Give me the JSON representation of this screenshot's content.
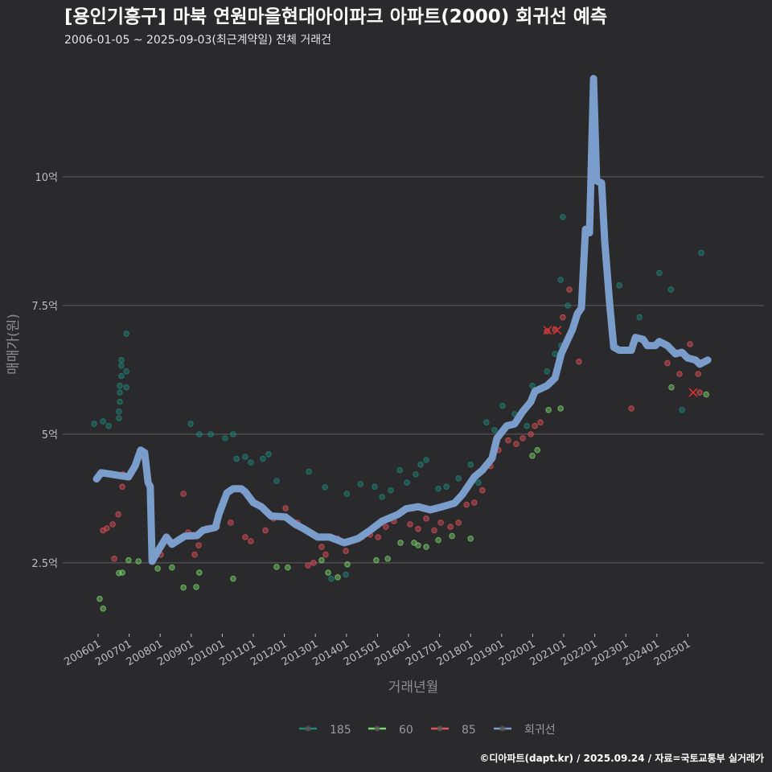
{
  "chart_data": {
    "type": "scatter",
    "title": "[용인기흥구] 마북 연원마을현대아이파크 아파트(2000) 회귀선 예측",
    "subtitle": "2006-01-05 ~ 2025-09-03(최근계약일) 전체 거래건",
    "xlabel": "거래년월",
    "ylabel": "매매가(원)",
    "caption": "©디아파트(dapt.kr) / 2025.09.24 / 자료=국토교통부 실거래가",
    "xlim": [
      2004.86,
      2027.45
    ],
    "ylim": [
      1.17,
      12.42
    ],
    "grid": true,
    "legend_position": "bottom",
    "x_ticks": [
      {
        "value": 2006,
        "label": "200601"
      },
      {
        "value": 2007,
        "label": "200701"
      },
      {
        "value": 2008,
        "label": "200801"
      },
      {
        "value": 2009,
        "label": "200901"
      },
      {
        "value": 2010,
        "label": "201001"
      },
      {
        "value": 2011,
        "label": "201101"
      },
      {
        "value": 2012,
        "label": "201201"
      },
      {
        "value": 2013,
        "label": "201301"
      },
      {
        "value": 2014,
        "label": "201401"
      },
      {
        "value": 2015,
        "label": "201501"
      },
      {
        "value": 2016,
        "label": "201601"
      },
      {
        "value": 2017,
        "label": "201701"
      },
      {
        "value": 2018,
        "label": "201801"
      },
      {
        "value": 2019,
        "label": "201901"
      },
      {
        "value": 2020,
        "label": "202001"
      },
      {
        "value": 2021,
        "label": "202101"
      },
      {
        "value": 2022,
        "label": "202201"
      },
      {
        "value": 2023,
        "label": "202301"
      },
      {
        "value": 2024,
        "label": "202401"
      },
      {
        "value": 2025,
        "label": "202501"
      }
    ],
    "y_ticks": [
      {
        "value": 2.5,
        "label": "2.5억"
      },
      {
        "value": 5,
        "label": "5억"
      },
      {
        "value": 7.5,
        "label": "7.5억"
      },
      {
        "value": 10,
        "label": "10억"
      }
    ],
    "series": [
      {
        "name": "185",
        "color": "#1f8a7a",
        "points": [
          [
            2005.87,
            5.2
          ],
          [
            2006.16,
            5.25
          ],
          [
            2006.34,
            5.16
          ],
          [
            2006.67,
            5.31
          ],
          [
            2006.67,
            5.44
          ],
          [
            2006.7,
            5.63
          ],
          [
            2006.7,
            5.81
          ],
          [
            2006.7,
            5.94
          ],
          [
            2006.75,
            6.13
          ],
          [
            2006.75,
            6.33
          ],
          [
            2006.75,
            6.44
          ],
          [
            2006.91,
            6.22
          ],
          [
            2006.91,
            6.95
          ],
          [
            2006.91,
            5.91
          ],
          [
            2008.98,
            5.2
          ],
          [
            2009.26,
            5.0
          ],
          [
            2009.63,
            5.0
          ],
          [
            2010.09,
            4.92
          ],
          [
            2010.35,
            5.0
          ],
          [
            2010.46,
            4.52
          ],
          [
            2010.74,
            4.56
          ],
          [
            2010.92,
            4.45
          ],
          [
            2011.31,
            4.52
          ],
          [
            2011.49,
            4.61
          ],
          [
            2011.75,
            4.09
          ],
          [
            2012.79,
            4.27
          ],
          [
            2013.31,
            3.97
          ],
          [
            2014.01,
            3.84
          ],
          [
            2014.45,
            4.03
          ],
          [
            2014.91,
            3.98
          ],
          [
            2015.15,
            3.78
          ],
          [
            2015.43,
            3.91
          ],
          [
            2015.72,
            4.3
          ],
          [
            2015.95,
            4.06
          ],
          [
            2016.23,
            4.22
          ],
          [
            2016.39,
            4.41
          ],
          [
            2016.57,
            4.5
          ],
          [
            2016.96,
            3.94
          ],
          [
            2017.22,
            3.98
          ],
          [
            2017.61,
            4.14
          ],
          [
            2018.0,
            4.41
          ],
          [
            2018.25,
            4.06
          ],
          [
            2018.51,
            5.23
          ],
          [
            2018.77,
            5.08
          ],
          [
            2019.03,
            5.55
          ],
          [
            2019.42,
            5.39
          ],
          [
            2019.81,
            5.16
          ],
          [
            2019.99,
            5.94
          ],
          [
            2020.46,
            6.22
          ],
          [
            2020.72,
            6.56
          ],
          [
            2020.92,
            6.72
          ],
          [
            2020.97,
            9.22
          ],
          [
            2020.9,
            8.0
          ],
          [
            2021.13,
            7.5
          ],
          [
            2022.79,
            7.89
          ],
          [
            2023.44,
            7.27
          ],
          [
            2024.08,
            8.13
          ],
          [
            2024.45,
            7.81
          ],
          [
            2024.81,
            5.47
          ],
          [
            2025.43,
            8.52
          ],
          [
            2013.51,
            2.19
          ],
          [
            2013.98,
            2.27
          ]
        ]
      },
      {
        "name": "60",
        "color": "#7fd86e",
        "points": [
          [
            2006.05,
            1.8
          ],
          [
            2006.16,
            1.61
          ],
          [
            2006.67,
            2.3
          ],
          [
            2006.78,
            2.31
          ],
          [
            2006.98,
            2.55
          ],
          [
            2007.3,
            2.53
          ],
          [
            2007.92,
            2.39
          ],
          [
            2008.38,
            2.41
          ],
          [
            2008.75,
            2.02
          ],
          [
            2009.16,
            2.03
          ],
          [
            2009.26,
            2.31
          ],
          [
            2010.35,
            2.19
          ],
          [
            2011.75,
            2.42
          ],
          [
            2012.11,
            2.41
          ],
          [
            2013.2,
            2.55
          ],
          [
            2013.41,
            2.31
          ],
          [
            2013.72,
            2.22
          ],
          [
            2014.03,
            2.47
          ],
          [
            2014.96,
            2.55
          ],
          [
            2015.33,
            2.58
          ],
          [
            2015.74,
            2.89
          ],
          [
            2016.18,
            2.89
          ],
          [
            2016.31,
            2.84
          ],
          [
            2016.57,
            2.81
          ],
          [
            2016.96,
            2.94
          ],
          [
            2017.4,
            3.02
          ],
          [
            2018.0,
            2.97
          ],
          [
            2019.99,
            4.58
          ],
          [
            2020.15,
            4.69
          ],
          [
            2020.51,
            5.47
          ],
          [
            2020.9,
            5.5
          ],
          [
            2024.47,
            5.91
          ],
          [
            2025.59,
            5.77
          ]
        ]
      },
      {
        "name": "85",
        "color": "#e2525c",
        "points": [
          [
            2006.16,
            3.13
          ],
          [
            2006.28,
            3.17
          ],
          [
            2006.47,
            3.25
          ],
          [
            2006.65,
            3.44
          ],
          [
            2006.78,
            3.98
          ],
          [
            2006.8,
            4.22
          ],
          [
            2006.52,
            2.58
          ],
          [
            2008.02,
            2.66
          ],
          [
            2008.75,
            3.84
          ],
          [
            2008.9,
            3.09
          ],
          [
            2009.11,
            2.66
          ],
          [
            2009.24,
            2.84
          ],
          [
            2009.5,
            3.17
          ],
          [
            2009.83,
            3.2
          ],
          [
            2010.27,
            3.28
          ],
          [
            2010.74,
            3.0
          ],
          [
            2010.92,
            2.92
          ],
          [
            2011.39,
            3.13
          ],
          [
            2011.65,
            3.36
          ],
          [
            2012.04,
            3.56
          ],
          [
            2012.42,
            3.28
          ],
          [
            2012.76,
            2.45
          ],
          [
            2012.94,
            2.5
          ],
          [
            2013.2,
            2.81
          ],
          [
            2013.33,
            2.66
          ],
          [
            2013.72,
            2.97
          ],
          [
            2013.98,
            2.73
          ],
          [
            2014.24,
            2.94
          ],
          [
            2014.5,
            3.0
          ],
          [
            2014.76,
            3.05
          ],
          [
            2015.02,
            3.0
          ],
          [
            2015.27,
            3.2
          ],
          [
            2015.53,
            3.31
          ],
          [
            2016.05,
            3.25
          ],
          [
            2016.31,
            3.16
          ],
          [
            2016.57,
            3.36
          ],
          [
            2016.83,
            3.13
          ],
          [
            2017.04,
            3.28
          ],
          [
            2017.35,
            3.2
          ],
          [
            2017.61,
            3.28
          ],
          [
            2017.87,
            3.63
          ],
          [
            2018.12,
            3.67
          ],
          [
            2018.38,
            3.91
          ],
          [
            2018.64,
            4.38
          ],
          [
            2018.9,
            4.69
          ],
          [
            2019.21,
            4.88
          ],
          [
            2019.47,
            4.81
          ],
          [
            2019.68,
            4.92
          ],
          [
            2019.94,
            5.0
          ],
          [
            2020.07,
            5.16
          ],
          [
            2020.25,
            5.23
          ],
          [
            2020.46,
            7.0
          ],
          [
            2020.72,
            7.03
          ],
          [
            2020.97,
            7.27
          ],
          [
            2021.18,
            7.81
          ],
          [
            2021.49,
            6.41
          ],
          [
            2023.18,
            5.5
          ],
          [
            2024.34,
            6.38
          ],
          [
            2024.73,
            6.17
          ],
          [
            2025.07,
            6.75
          ],
          [
            2025.33,
            6.17
          ],
          [
            2025.38,
            5.81
          ]
        ]
      },
      {
        "name": "회귀선",
        "color": "#7b9dcb",
        "type": "line",
        "points": [
          [
            2005.95,
            4.13
          ],
          [
            2006.1,
            4.25
          ],
          [
            2006.34,
            4.23
          ],
          [
            2006.73,
            4.19
          ],
          [
            2006.98,
            4.17
          ],
          [
            2007.19,
            4.38
          ],
          [
            2007.37,
            4.69
          ],
          [
            2007.5,
            4.64
          ],
          [
            2007.61,
            4.06
          ],
          [
            2007.68,
            3.98
          ],
          [
            2007.74,
            2.53
          ],
          [
            2007.92,
            2.72
          ],
          [
            2008.2,
            3.0
          ],
          [
            2008.38,
            2.86
          ],
          [
            2008.8,
            3.02
          ],
          [
            2009.19,
            3.03
          ],
          [
            2009.37,
            3.13
          ],
          [
            2009.78,
            3.19
          ],
          [
            2009.89,
            3.44
          ],
          [
            2010.15,
            3.86
          ],
          [
            2010.35,
            3.94
          ],
          [
            2010.61,
            3.94
          ],
          [
            2010.74,
            3.88
          ],
          [
            2011.0,
            3.67
          ],
          [
            2011.26,
            3.59
          ],
          [
            2011.57,
            3.41
          ],
          [
            2012.04,
            3.39
          ],
          [
            2012.35,
            3.25
          ],
          [
            2012.63,
            3.16
          ],
          [
            2013.07,
            3.0
          ],
          [
            2013.46,
            3.0
          ],
          [
            2013.93,
            2.89
          ],
          [
            2014.37,
            2.97
          ],
          [
            2014.76,
            3.13
          ],
          [
            2015.15,
            3.31
          ],
          [
            2015.66,
            3.44
          ],
          [
            2015.92,
            3.55
          ],
          [
            2016.31,
            3.59
          ],
          [
            2016.7,
            3.53
          ],
          [
            2017.09,
            3.59
          ],
          [
            2017.48,
            3.66
          ],
          [
            2017.74,
            3.83
          ],
          [
            2018.12,
            4.17
          ],
          [
            2018.38,
            4.3
          ],
          [
            2018.69,
            4.53
          ],
          [
            2018.85,
            4.92
          ],
          [
            2019.16,
            5.16
          ],
          [
            2019.42,
            5.2
          ],
          [
            2019.68,
            5.44
          ],
          [
            2019.94,
            5.63
          ],
          [
            2020.07,
            5.83
          ],
          [
            2020.46,
            5.94
          ],
          [
            2020.72,
            6.09
          ],
          [
            2020.92,
            6.56
          ],
          [
            2021.1,
            6.8
          ],
          [
            2021.28,
            7.03
          ],
          [
            2021.44,
            7.34
          ],
          [
            2021.57,
            7.45
          ],
          [
            2021.7,
            8.98
          ],
          [
            2021.83,
            8.91
          ],
          [
            2021.96,
            11.91
          ],
          [
            2022.06,
            9.92
          ],
          [
            2022.22,
            9.88
          ],
          [
            2022.32,
            8.75
          ],
          [
            2022.48,
            7.53
          ],
          [
            2022.61,
            6.69
          ],
          [
            2022.79,
            6.63
          ],
          [
            2023.18,
            6.63
          ],
          [
            2023.31,
            6.88
          ],
          [
            2023.56,
            6.84
          ],
          [
            2023.69,
            6.72
          ],
          [
            2023.95,
            6.72
          ],
          [
            2024.08,
            6.8
          ],
          [
            2024.34,
            6.72
          ],
          [
            2024.6,
            6.56
          ],
          [
            2024.81,
            6.59
          ],
          [
            2024.99,
            6.48
          ],
          [
            2025.25,
            6.44
          ],
          [
            2025.38,
            6.36
          ],
          [
            2025.64,
            6.44
          ]
        ]
      }
    ],
    "cancelled_markers": [
      [
        2020.48,
        7.02
      ],
      [
        2020.79,
        7.02
      ],
      [
        2025.17,
        5.81
      ]
    ]
  }
}
